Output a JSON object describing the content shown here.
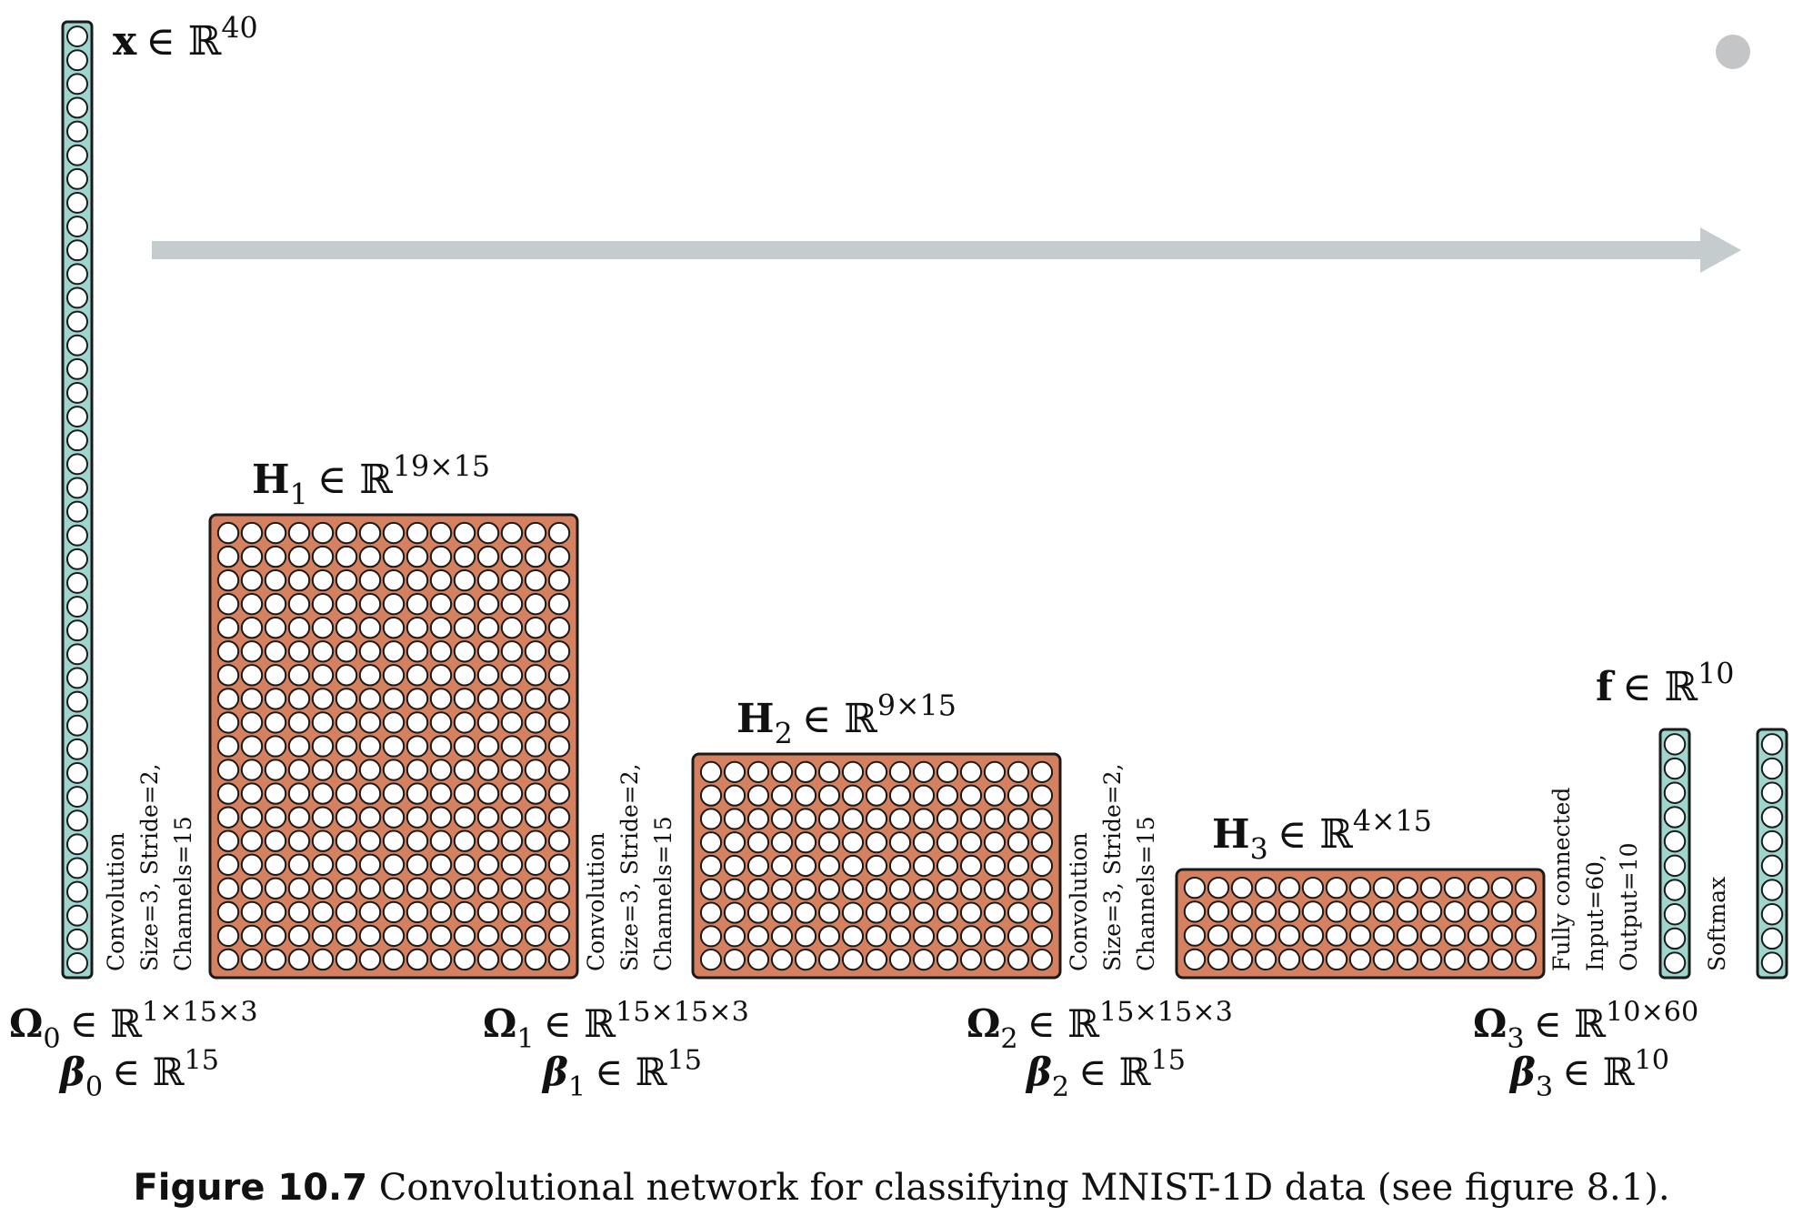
{
  "flow_arrow_color": "#c5ccce",
  "dot_color": "#c3c5c7",
  "colors": {
    "vector_fill": "#9fd5cf",
    "tensor_fill": "#d5805e",
    "neuron_fill": "#ffffff",
    "outline": "#1a1a1a"
  },
  "input": {
    "symbol": "x",
    "set": "ℝ",
    "exp": "40",
    "neurons": 40
  },
  "hidden": [
    {
      "symbol": "H",
      "sub": "1",
      "set": "ℝ",
      "exp": "19×15",
      "rows": 19,
      "cols": 15
    },
    {
      "symbol": "H",
      "sub": "2",
      "set": "ℝ",
      "exp": "9×15",
      "rows": 9,
      "cols": 15
    },
    {
      "symbol": "H",
      "sub": "3",
      "set": "ℝ",
      "exp": "4×15",
      "rows": 4,
      "cols": 15
    }
  ],
  "output": {
    "symbol": "f",
    "set": "ℝ",
    "exp": "10",
    "neurons": 10
  },
  "softmax_vector": {
    "neurons": 10
  },
  "ops": [
    {
      "lines": [
        "Convolution",
        "Size=3, Stride=2,",
        "Channels=15"
      ]
    },
    {
      "lines": [
        "Convolution",
        "Size=3, Stride=2,",
        "Channels=15"
      ]
    },
    {
      "lines": [
        "Convolution",
        "Size=3, Stride=2,",
        "Channels=15"
      ]
    },
    {
      "lines": [
        "Fully connected",
        "Input=60,",
        "Output=10"
      ]
    },
    {
      "lines": [
        "Softmax"
      ]
    }
  ],
  "params": [
    {
      "omega": "Ω",
      "omega_sub": "0",
      "omega_exp": "1×15×3",
      "beta": "β",
      "beta_sub": "0",
      "beta_exp": "15",
      "set": "ℝ"
    },
    {
      "omega": "Ω",
      "omega_sub": "1",
      "omega_exp": "15×15×3",
      "beta": "β",
      "beta_sub": "1",
      "beta_exp": "15",
      "set": "ℝ"
    },
    {
      "omega": "Ω",
      "omega_sub": "2",
      "omega_exp": "15×15×3",
      "beta": "β",
      "beta_sub": "2",
      "beta_exp": "15",
      "set": "ℝ"
    },
    {
      "omega": "Ω",
      "omega_sub": "3",
      "omega_exp": "10×60",
      "beta": "β",
      "beta_sub": "3",
      "beta_exp": "10",
      "set": "ℝ"
    }
  ],
  "element_of": "∈",
  "caption": {
    "figure_label": "Figure 10.7",
    "text": " Convolutional network for classifying MNIST-1D data (see figure 8.1)."
  }
}
